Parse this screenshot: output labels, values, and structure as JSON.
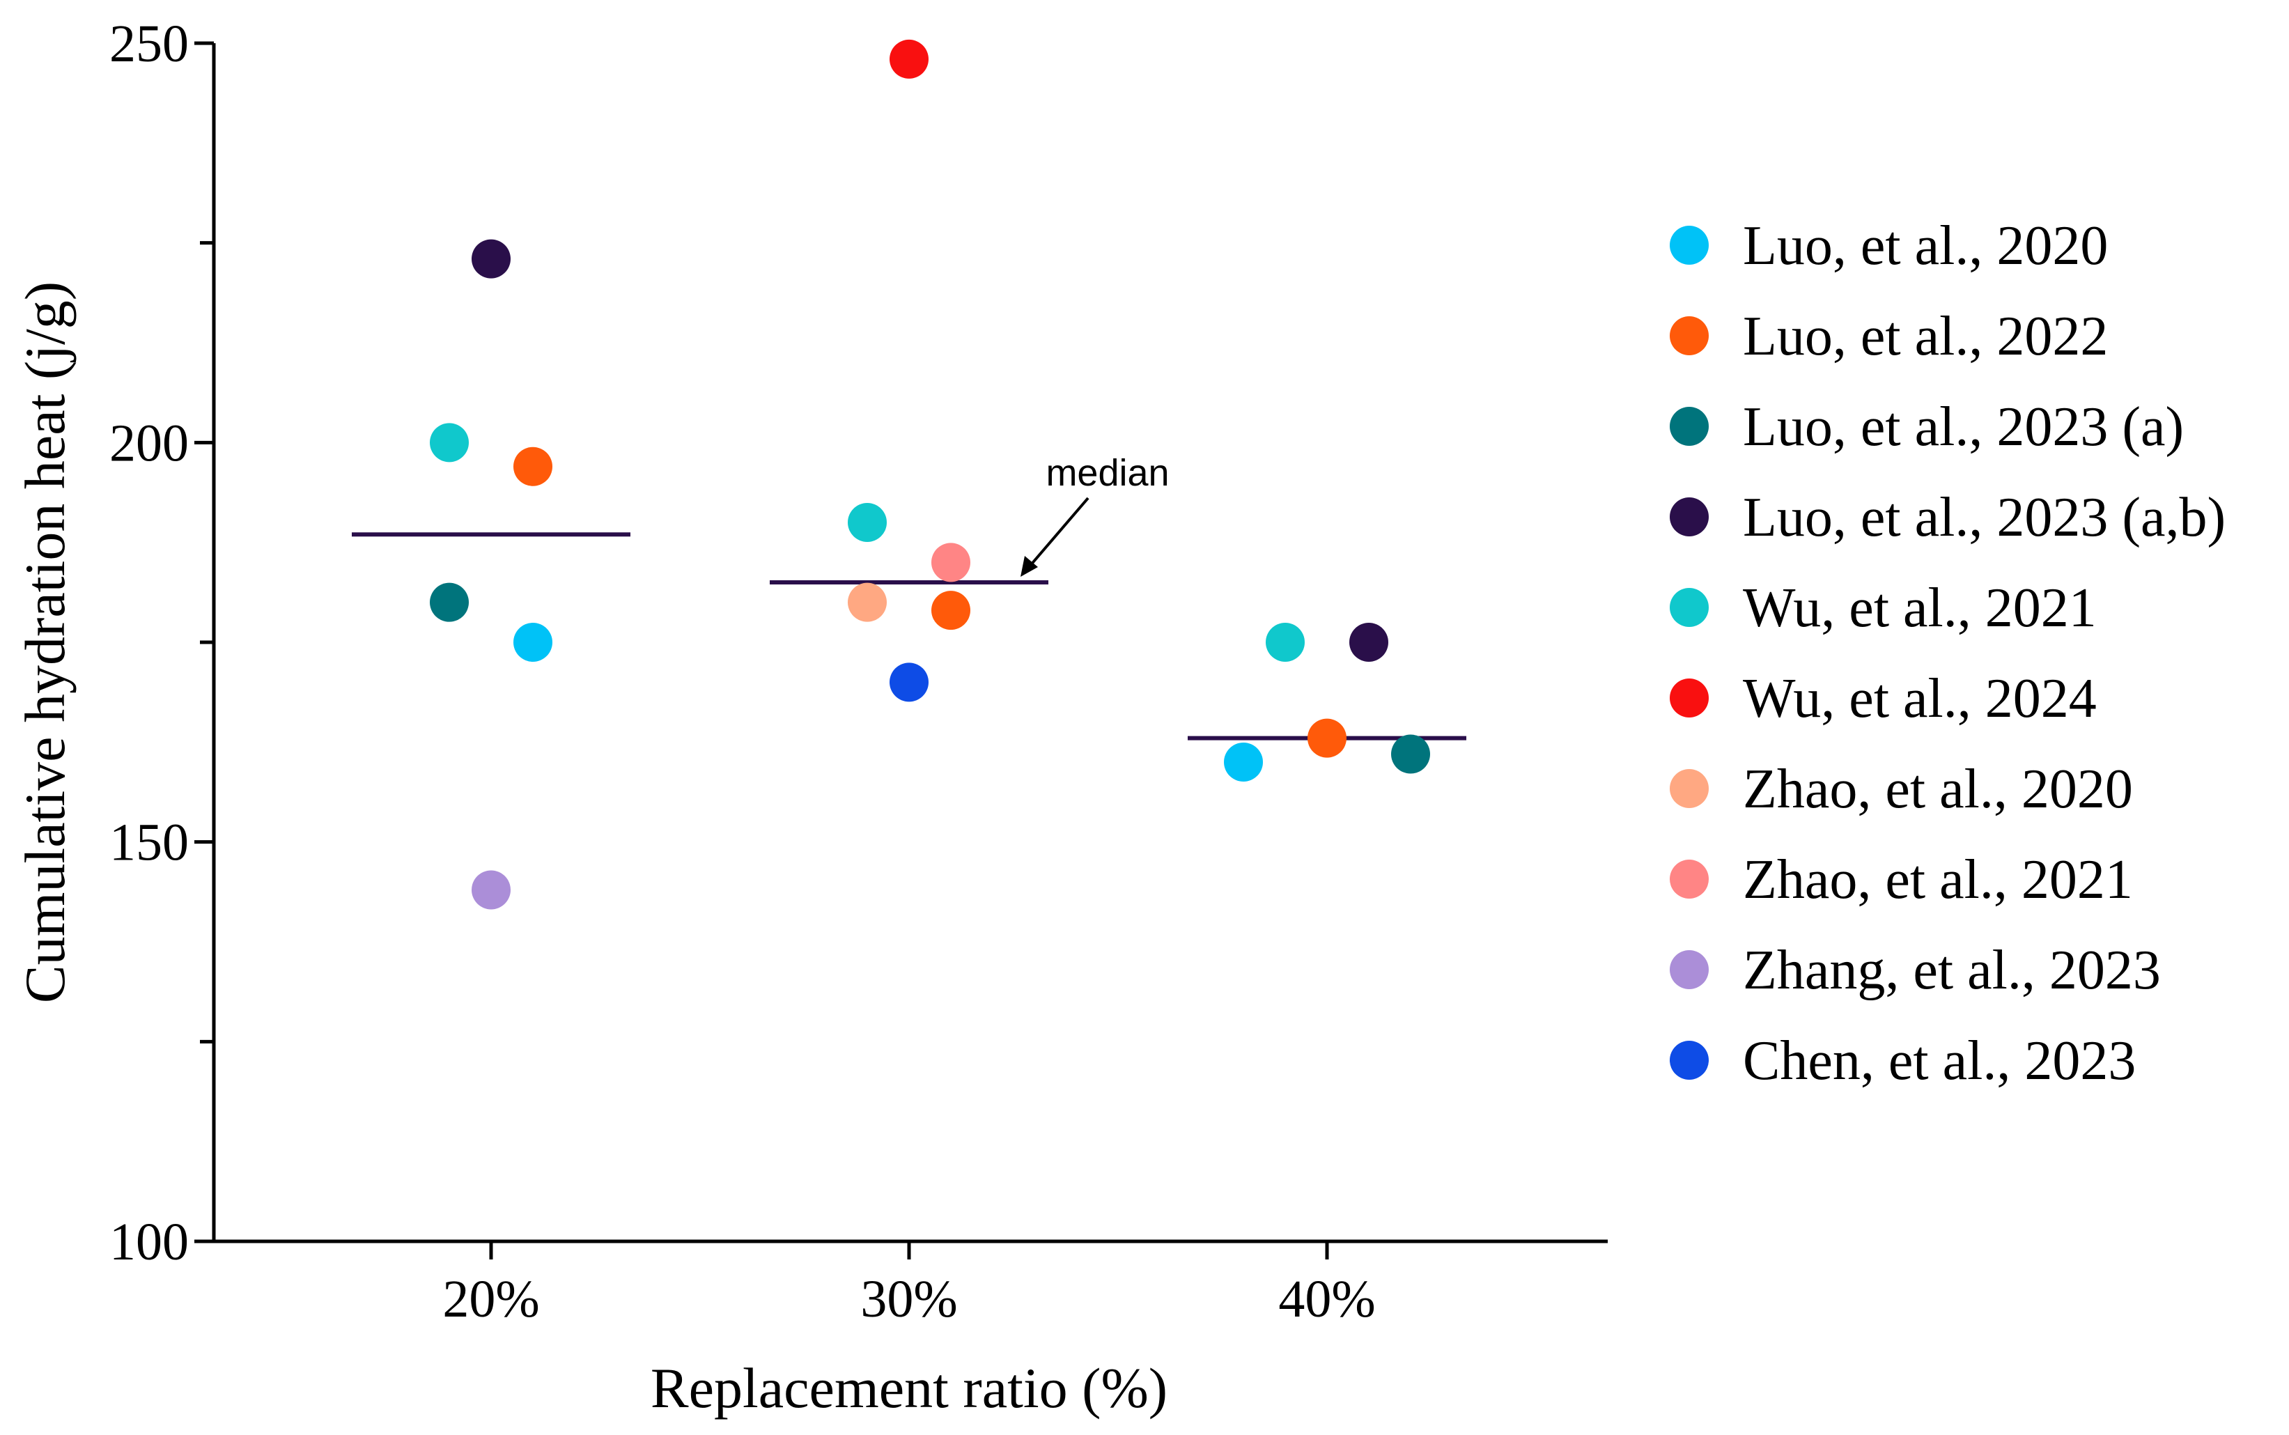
{
  "chart_data": {
    "type": "scatter",
    "title": "",
    "xlabel": "Replacement ratio (%)",
    "ylabel": "Cumulative hydration heat (j/g)",
    "ylim": [
      100,
      250
    ],
    "yticks": [
      100,
      150,
      200,
      250
    ],
    "categories": [
      "20%",
      "30%",
      "40%"
    ],
    "legend_position": "right",
    "annotation": "median",
    "medians": [
      {
        "category": "20%",
        "value": 188.5
      },
      {
        "category": "30%",
        "value": 182.5
      },
      {
        "category": "40%",
        "value": 163
      }
    ],
    "series": [
      {
        "name": "Luo, et al., 2020",
        "color": "#00C2F7",
        "points": [
          {
            "x": 21,
            "y": 175
          },
          {
            "x": 38,
            "y": 160
          }
        ]
      },
      {
        "name": "Luo, et al., 2022",
        "color": "#FF5A0A",
        "points": [
          {
            "x": 21,
            "y": 197
          },
          {
            "x": 31,
            "y": 179
          },
          {
            "x": 40,
            "y": 163
          }
        ]
      },
      {
        "name": "Luo, et al., 2023 (a)",
        "color": "#00747C",
        "points": [
          {
            "x": 19,
            "y": 180
          },
          {
            "x": 42,
            "y": 161
          }
        ]
      },
      {
        "name": "Luo, et al., 2023 (a,b)",
        "color": "#2A0F4A",
        "points": [
          {
            "x": 20,
            "y": 223
          },
          {
            "x": 41,
            "y": 175
          }
        ]
      },
      {
        "name": "Wu, et al., 2021",
        "color": "#10C8CC",
        "points": [
          {
            "x": 19,
            "y": 200
          },
          {
            "x": 29,
            "y": 190
          },
          {
            "x": 39,
            "y": 175
          }
        ]
      },
      {
        "name": "Wu, et al., 2024",
        "color": "#F91010",
        "points": [
          {
            "x": 30,
            "y": 248
          }
        ]
      },
      {
        "name": "Zhao, et al., 2020",
        "color": "#FFA882",
        "points": [
          {
            "x": 29,
            "y": 180
          }
        ]
      },
      {
        "name": "Zhao, et al., 2021",
        "color": "#FF8585",
        "points": [
          {
            "x": 31,
            "y": 185
          }
        ]
      },
      {
        "name": "Zhang, et al., 2023",
        "color": "#AB8ED8",
        "points": [
          {
            "x": 20,
            "y": 144
          }
        ]
      },
      {
        "name": "Chen, et al., 2023",
        "color": "#0E4CE6",
        "points": [
          {
            "x": 30,
            "y": 170
          }
        ]
      }
    ],
    "colors": {
      "axis": "#000000",
      "median_line": "#2A0F4A"
    }
  }
}
